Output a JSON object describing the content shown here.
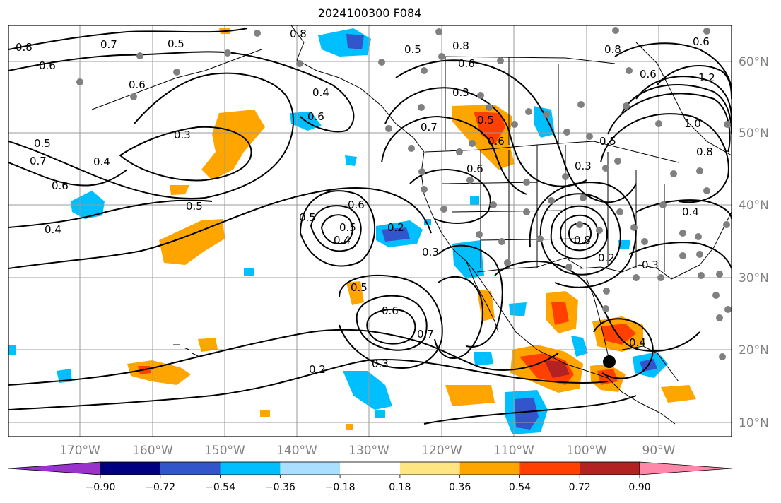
{
  "title": "2024100300 F084",
  "lat_labels": [
    "60°N",
    "50°N",
    "40°N",
    "30°N",
    "20°N",
    "10°N"
  ],
  "lon_labels": [
    "170°W",
    "160°W",
    "150°W",
    "140°W",
    "130°W",
    "120°W",
    "110°W",
    "100°W",
    "90°W"
  ],
  "colorbar": {
    "ticks": [
      "−0.90",
      "−0.72",
      "−0.54",
      "−0.36",
      "−0.18",
      "0.18",
      "0.36",
      "0.54",
      "0.72",
      "0.90"
    ],
    "colors": [
      "#9933cc",
      "#000080",
      "#3355cc",
      "#00bfff",
      "#aadfff",
      "#ffffff",
      "#ffe680",
      "#ffa500",
      "#ff4000",
      "#b22222",
      "#ff88aa"
    ]
  },
  "contour_labels": [
    "0.8",
    "0.7",
    "0.5",
    "0.6",
    "0.8",
    "0.8",
    "0.6",
    "0.6",
    "0.5",
    "0.8",
    "0.6",
    "0.6",
    "1.2",
    "0.6",
    "0.4",
    "0.3",
    "0.5",
    "0.7",
    "0.6",
    "1.0",
    "0.5",
    "0.3",
    "0.7",
    "0.4",
    "0.6",
    "0.8",
    "0.6",
    "0.3",
    "0.4",
    "0.5",
    "0.5",
    "0.2",
    "0.4",
    "0.3",
    "0.2",
    "0.5",
    "0.4",
    "0.3",
    "0.6",
    "0.7",
    "0.2",
    "0.3",
    "0.5",
    "0.4",
    "0.5",
    "0.6",
    "0.8"
  ],
  "colors": {
    "contour": "#000000",
    "coast": "#000000",
    "grid": "#999999",
    "station": "#808080",
    "marker": "#000000"
  }
}
